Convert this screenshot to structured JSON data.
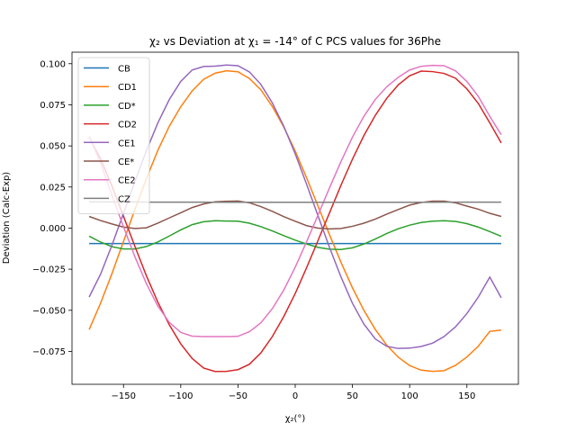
{
  "chart_data": {
    "type": "line",
    "title": "χ₂ vs Deviation at χ₁ = -14° of C PCS values for 36Phe",
    "xlabel": "χ₂(°)",
    "ylabel": "Deviation (Calc-Exp)",
    "xlim": [
      -195,
      195
    ],
    "ylim": [
      -0.095,
      0.107
    ],
    "xticks": [
      -150,
      -100,
      -50,
      0,
      50,
      100,
      150
    ],
    "xtick_labels": [
      "−150",
      "−100",
      "−50",
      "0",
      "50",
      "100",
      "150"
    ],
    "yticks": [
      -0.075,
      -0.05,
      -0.025,
      0.0,
      0.025,
      0.05,
      0.075,
      0.1
    ],
    "ytick_labels": [
      "−0.075",
      "−0.050",
      "−0.025",
      "0.000",
      "0.025",
      "0.050",
      "0.075",
      "0.100"
    ],
    "grid": false,
    "legend_position": "top-left",
    "x": [
      -180,
      -170,
      -160,
      -150,
      -140,
      -130,
      -120,
      -110,
      -100,
      -90,
      -80,
      -70,
      -60,
      -50,
      -40,
      -30,
      -20,
      -10,
      0,
      10,
      20,
      30,
      40,
      50,
      60,
      70,
      80,
      90,
      100,
      110,
      120,
      130,
      140,
      150,
      160,
      170,
      180
    ],
    "series": [
      {
        "name": "CB",
        "color": "#1f77b4",
        "values": [
          -0.0094,
          -0.0094,
          -0.0094,
          -0.0094,
          -0.0094,
          -0.0094,
          -0.0094,
          -0.0094,
          -0.0094,
          -0.0094,
          -0.0094,
          -0.0094,
          -0.0094,
          -0.0094,
          -0.0094,
          -0.0094,
          -0.0094,
          -0.0094,
          -0.0094,
          -0.0094,
          -0.0094,
          -0.0094,
          -0.0094,
          -0.0094,
          -0.0094,
          -0.0094,
          -0.0094,
          -0.0094,
          -0.0094,
          -0.0094,
          -0.0094,
          -0.0094,
          -0.0094,
          -0.0094,
          -0.0094,
          -0.0094,
          -0.0094
        ]
      },
      {
        "name": "CD1",
        "color": "#ff7f0e",
        "values": [
          -0.0617,
          -0.0456,
          -0.0275,
          -0.0081,
          0.0115,
          0.0301,
          0.0473,
          0.062,
          0.0738,
          0.0835,
          0.0905,
          0.0942,
          0.0957,
          0.0951,
          0.091,
          0.0841,
          0.074,
          0.0615,
          0.0469,
          0.0305,
          0.0133,
          -0.0041,
          -0.0208,
          -0.0363,
          -0.05,
          -0.0617,
          -0.0712,
          -0.0785,
          -0.0836,
          -0.0864,
          -0.0871,
          -0.0867,
          -0.0835,
          -0.0784,
          -0.0718,
          -0.0628,
          -0.062
        ]
      },
      {
        "name": "CD*",
        "color": "#2ca02c",
        "values": [
          -0.0049,
          -0.0085,
          -0.0113,
          -0.0127,
          -0.0127,
          -0.0112,
          -0.0084,
          -0.0048,
          -0.0011,
          0.0021,
          0.0039,
          0.0045,
          0.0043,
          0.0042,
          0.003,
          0.0009,
          -0.0017,
          -0.0046,
          -0.0073,
          -0.0097,
          -0.0117,
          -0.0128,
          -0.013,
          -0.012,
          -0.0097,
          -0.0066,
          -0.0033,
          -0.0004,
          0.0018,
          0.0034,
          0.0042,
          0.0045,
          0.0041,
          0.0027,
          0.0006,
          -0.0021,
          -0.005
        ]
      },
      {
        "name": "CD2",
        "color": "#d62728",
        "values": [
          0.0553,
          0.042,
          0.0254,
          0.0072,
          -0.0112,
          -0.029,
          -0.045,
          -0.0588,
          -0.0704,
          -0.0793,
          -0.0851,
          -0.0872,
          -0.0871,
          -0.0861,
          -0.0828,
          -0.0759,
          -0.066,
          -0.0538,
          -0.0398,
          -0.024,
          -0.0074,
          0.0093,
          0.0261,
          0.0419,
          0.0563,
          0.0686,
          0.079,
          0.0871,
          0.0927,
          0.0955,
          0.0952,
          0.0941,
          0.0912,
          0.0847,
          0.0758,
          0.064,
          0.0518
        ]
      },
      {
        "name": "CE1",
        "color": "#9467bd",
        "values": [
          -0.0419,
          -0.028,
          -0.0102,
          0.009,
          0.0284,
          0.0471,
          0.064,
          0.0782,
          0.0892,
          0.0962,
          0.0983,
          0.0985,
          0.0992,
          0.0988,
          0.095,
          0.0874,
          0.0762,
          0.062,
          0.0452,
          0.0266,
          0.0074,
          -0.0118,
          -0.0297,
          -0.0457,
          -0.0584,
          -0.0674,
          -0.0719,
          -0.0732,
          -0.073,
          -0.072,
          -0.07,
          -0.066,
          -0.0601,
          -0.052,
          -0.0419,
          -0.0298,
          -0.0424
        ]
      },
      {
        "name": "CE*",
        "color": "#8c564b",
        "values": [
          0.0071,
          0.0046,
          0.0025,
          0.0006,
          -0.0002,
          0.0002,
          0.003,
          0.0062,
          0.0093,
          0.0125,
          0.0147,
          0.016,
          0.0163,
          0.0165,
          0.0154,
          0.0131,
          0.0102,
          0.007,
          0.0042,
          0.0015,
          0.0,
          -0.0005,
          -0.0002,
          0.0011,
          0.003,
          0.0055,
          0.0085,
          0.0113,
          0.014,
          0.0156,
          0.0164,
          0.0164,
          0.0154,
          0.0134,
          0.0115,
          0.009,
          0.0071
        ]
      },
      {
        "name": "CE2",
        "color": "#e377c2",
        "values": [
          0.0559,
          0.0395,
          0.0196,
          0.0008,
          -0.0175,
          -0.0338,
          -0.0474,
          -0.0573,
          -0.0634,
          -0.0657,
          -0.066,
          -0.066,
          -0.066,
          -0.0658,
          -0.063,
          -0.0576,
          -0.049,
          -0.0377,
          -0.0238,
          -0.0082,
          0.008,
          0.0245,
          0.0405,
          0.0553,
          0.068,
          0.0783,
          0.086,
          0.0917,
          0.0962,
          0.0984,
          0.099,
          0.0988,
          0.0957,
          0.0892,
          0.0801,
          0.068,
          0.0568
        ]
      },
      {
        "name": "CZ",
        "color": "#7f7f7f",
        "values": [
          0.016,
          0.016,
          0.0159,
          0.0159,
          0.0159,
          0.0158,
          0.0158,
          0.0158,
          0.0158,
          0.0158,
          0.0158,
          0.0157,
          0.0157,
          0.0157,
          0.0157,
          0.0157,
          0.0157,
          0.0157,
          0.0157,
          0.0157,
          0.0157,
          0.0157,
          0.0157,
          0.0157,
          0.0157,
          0.0157,
          0.0157,
          0.0157,
          0.0157,
          0.0157,
          0.0157,
          0.0158,
          0.0158,
          0.0158,
          0.0158,
          0.0158,
          0.0158
        ]
      }
    ]
  }
}
